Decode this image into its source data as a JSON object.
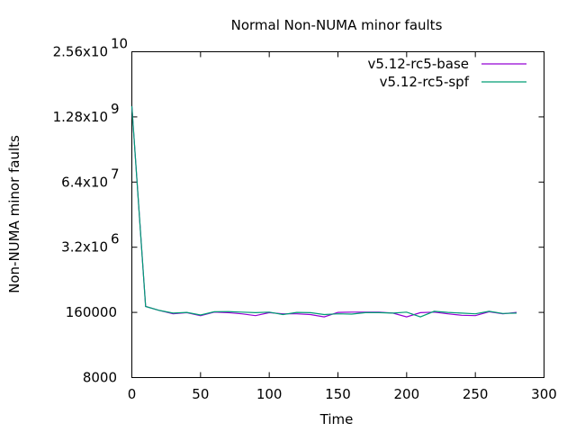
{
  "chart_data": {
    "type": "line",
    "title": "Normal Non-NUMA minor faults",
    "xlabel": "Time",
    "ylabel": "Non-NUMA minor faults",
    "y_scale": "log",
    "xlim": [
      0,
      300
    ],
    "ylim": [
      8000,
      25600000000
    ],
    "x_ticks": [
      0,
      50,
      100,
      150,
      200,
      250,
      300
    ],
    "x_tick_labels": [
      "0",
      "50",
      "100",
      "150",
      "200",
      "250",
      "300"
    ],
    "y_ticks": [
      8000,
      160000,
      3200000,
      64000000,
      1280000000,
      25600000000
    ],
    "y_tick_labels": [
      {
        "base": "8000",
        "exp": ""
      },
      {
        "base": "160000",
        "exp": ""
      },
      {
        "base": "3.2x10",
        "exp": "6"
      },
      {
        "base": "6.4x10",
        "exp": "7"
      },
      {
        "base": "1.28x10",
        "exp": "9"
      },
      {
        "base": "2.56x10",
        "exp": "10"
      }
    ],
    "legend_position": "top-right",
    "grid": false,
    "x": [
      0,
      10,
      20,
      30,
      40,
      50,
      60,
      70,
      80,
      90,
      100,
      110,
      120,
      130,
      140,
      150,
      160,
      170,
      180,
      190,
      200,
      210,
      220,
      230,
      240,
      250,
      260,
      270,
      280
    ],
    "series": [
      {
        "name": "v5.12-rc5-base",
        "color": "#9400d3",
        "values": [
          2100000000,
          210000,
          175000,
          150000,
          158000,
          138000,
          162000,
          158000,
          150000,
          138000,
          158000,
          150000,
          150000,
          145000,
          130000,
          160000,
          162000,
          162000,
          162000,
          155000,
          130000,
          158000,
          162000,
          150000,
          140000,
          138000,
          165000,
          150000,
          160000
        ]
      },
      {
        "name": "v5.12-rc5-spf",
        "color": "#009e73",
        "values": [
          2100000000,
          210000,
          175000,
          155000,
          160000,
          142000,
          165000,
          166000,
          162000,
          158000,
          162000,
          145000,
          160000,
          158000,
          145000,
          150000,
          148000,
          158000,
          158000,
          155000,
          162000,
          130000,
          168000,
          160000,
          155000,
          150000,
          168000,
          152000,
          155000
        ]
      }
    ]
  }
}
